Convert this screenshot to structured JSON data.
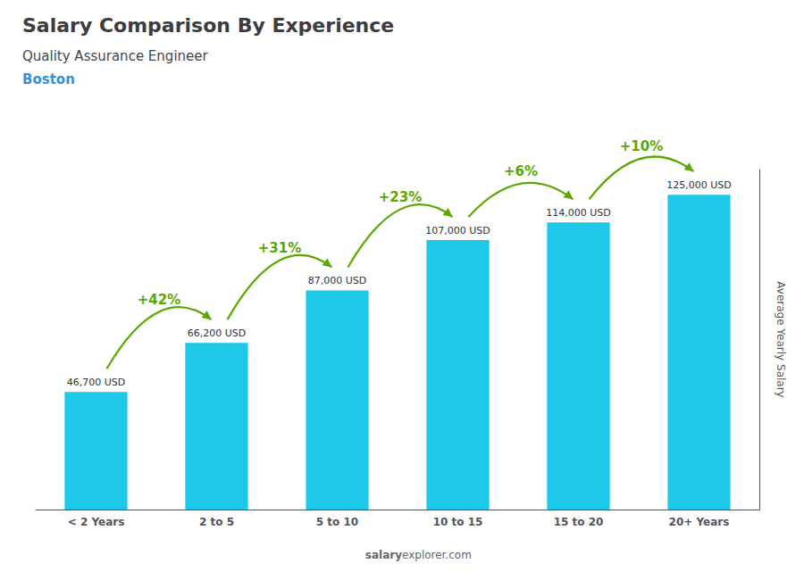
{
  "chart_data": {
    "type": "bar",
    "title": "Salary Comparison By Experience",
    "subtitle": [
      "Quality Assurance Engineer",
      "Boston"
    ],
    "categories": [
      "< 2 Years",
      "2 to 5",
      "5 to 10",
      "10 to 15",
      "15 to 20",
      "20+ Years"
    ],
    "values": [
      46700,
      66200,
      87000,
      107000,
      114000,
      125000
    ],
    "value_labels": [
      "46,700 USD",
      "66,200 USD",
      "87,000 USD",
      "107,000 USD",
      "114,000 USD",
      "125,000 USD"
    ],
    "data_labels": true,
    "color": "#1ec8e8",
    "ylabel": "Average Yearly Salary",
    "ylim": [
      0,
      135000
    ],
    "grid": false,
    "tick_labels": "x",
    "annotations": [
      {
        "text": "+42%",
        "from": "< 2 Years",
        "to": "2 to 5"
      },
      {
        "text": "+31%",
        "from": "2 to 5",
        "to": "5 to 10"
      },
      {
        "text": "+23%",
        "from": "5 to 10",
        "to": "10 to 15"
      },
      {
        "text": "+6%",
        "from": "10 to 15",
        "to": "15 to 20"
      },
      {
        "text": "+10%",
        "from": "15 to 20",
        "to": "20+ Years"
      },
      {
        "text": "salary"
      },
      {
        "text": "explorer.com"
      }
    ]
  }
}
